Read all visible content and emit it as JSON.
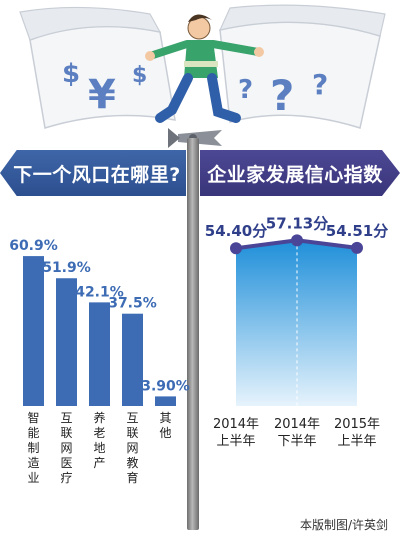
{
  "headings": {
    "left": "下一个风口在哪里?",
    "right": "企业家发展信心指数"
  },
  "credit": "本版制图/许英剑",
  "illustration": {
    "symbols": [
      "$",
      "¥",
      "$",
      "?",
      "?",
      "?"
    ]
  },
  "colors": {
    "bar": "#3d6cb5",
    "bar_label": "#3d6cb5",
    "line": "#4a4596",
    "area_top": "#1f8fd9",
    "area_bottom": "#e6f3fc",
    "value_label": "#2f3f8a"
  },
  "chart_data": [
    {
      "type": "bar",
      "title": "下一个风口在哪里?",
      "categories": [
        "智能制造业",
        "互联网医疗",
        "养老地产",
        "互联网教育",
        "其他"
      ],
      "values": [
        60.9,
        51.9,
        42.1,
        37.5,
        3.9
      ],
      "labels": [
        "60.9%",
        "51.9%",
        "42.1%",
        "37.5%",
        "3.90%"
      ],
      "ylim": [
        0,
        65
      ]
    },
    {
      "type": "area",
      "title": "企业家发展信心指数",
      "categories": [
        "2014年上半年",
        "2014年下半年",
        "2015年上半年"
      ],
      "x_label_lines": [
        [
          "2014年",
          "上半年"
        ],
        [
          "2014年",
          "下半年"
        ],
        [
          "2015年",
          "上半年"
        ]
      ],
      "values": [
        54.4,
        57.13,
        54.51
      ],
      "labels": [
        "54.40分",
        "57.13分",
        "54.51分"
      ],
      "ylim": [
        0,
        60
      ]
    }
  ]
}
